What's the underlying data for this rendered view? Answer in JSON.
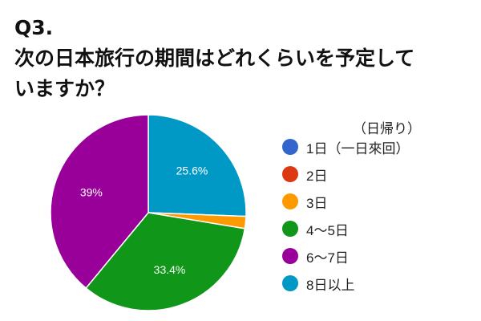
{
  "chart_data": {
    "type": "pie",
    "title_line1": "Q3.",
    "title_line2": "次の日本旅行の期間はどれくらいを予定して",
    "title_line3": "いますか？",
    "start": "top",
    "direction": "clockwise",
    "legend_position": "right",
    "slices": [
      {
        "label": "8日以上",
        "value": 25.6,
        "color": "#0099c6",
        "data_label": "25.6%"
      },
      {
        "label": "1日（一日來回）",
        "label_note": "（日帰り）",
        "value": 0,
        "color": "#3366cc",
        "data_label": ""
      },
      {
        "label": "2日",
        "value": 0,
        "color": "#dc3912",
        "data_label": ""
      },
      {
        "label": "3日",
        "value": 2.0,
        "color": "#ff9900",
        "data_label": ""
      },
      {
        "label": "4〜5日",
        "value": 33.4,
        "color": "#109618",
        "data_label": "33.4%"
      },
      {
        "label": "6〜7日",
        "value": 39,
        "color": "#990099",
        "data_label": "39%"
      }
    ],
    "legend_order": [
      1,
      2,
      3,
      4,
      5,
      0
    ]
  }
}
